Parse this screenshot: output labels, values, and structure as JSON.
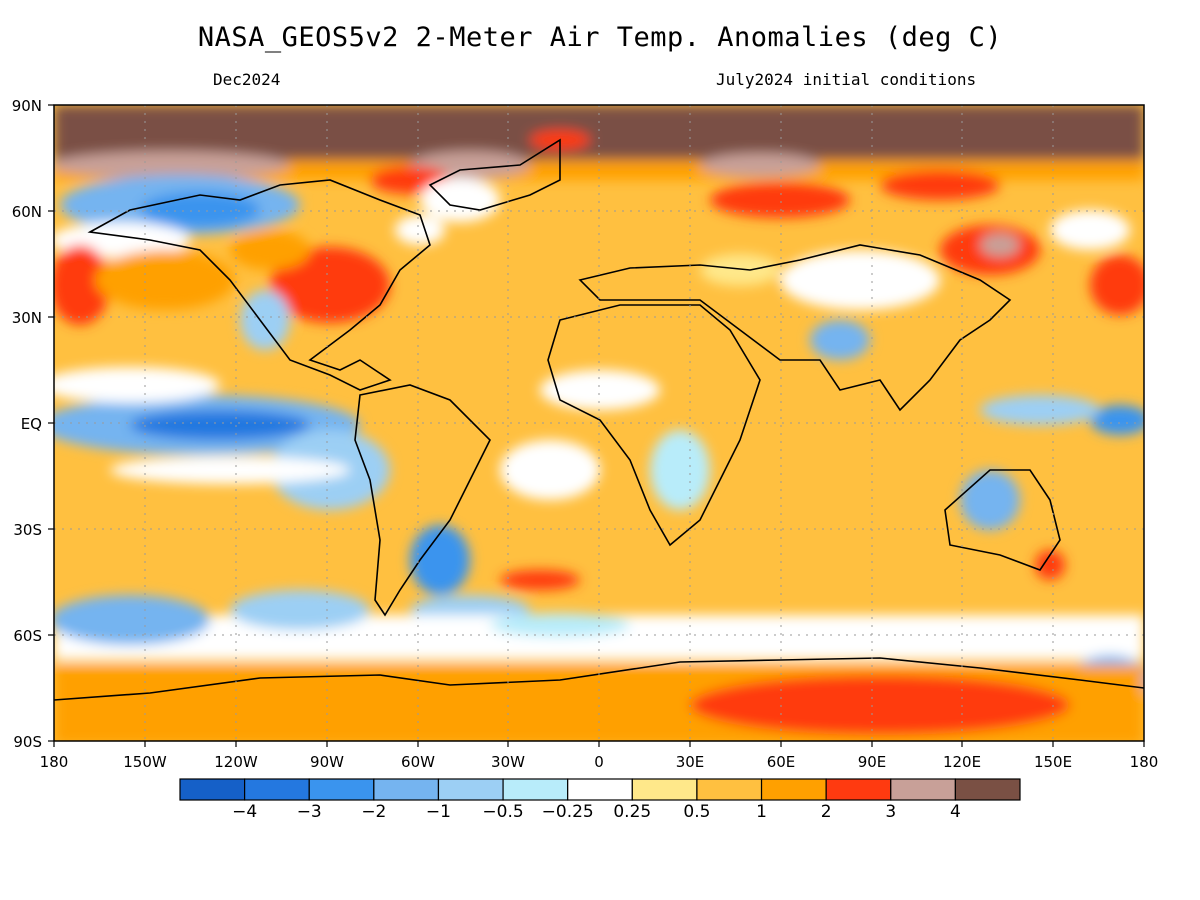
{
  "header": {
    "title": "NASA_GEOS5v2 2-Meter Air Temp. Anomalies (deg C)",
    "left_subtitle": "Dec2024",
    "right_subtitle": "July2024 initial conditions"
  },
  "map": {
    "lat_labels": [
      "90N",
      "60N",
      "30N",
      "EQ",
      "30S",
      "60S",
      "90S"
    ],
    "lon_labels": [
      "180",
      "150W",
      "120W",
      "90W",
      "60W",
      "30W",
      "0",
      "30E",
      "60E",
      "90E",
      "120E",
      "150E",
      "180"
    ]
  },
  "colorbar": {
    "colors": [
      "#1560c8",
      "#2478e0",
      "#3a94ee",
      "#75b4f0",
      "#9ccff4",
      "#b8ecfa",
      "#ffffff",
      "#ffe88a",
      "#ffc040",
      "#ffa000",
      "#ff3a10",
      "#c8a098",
      "#7a5044"
    ],
    "labels": [
      "−4",
      "−3",
      "−2",
      "−1",
      "−0.5",
      "−0.25",
      "0.25",
      "0.5",
      "1",
      "2",
      "3",
      "4"
    ]
  }
}
